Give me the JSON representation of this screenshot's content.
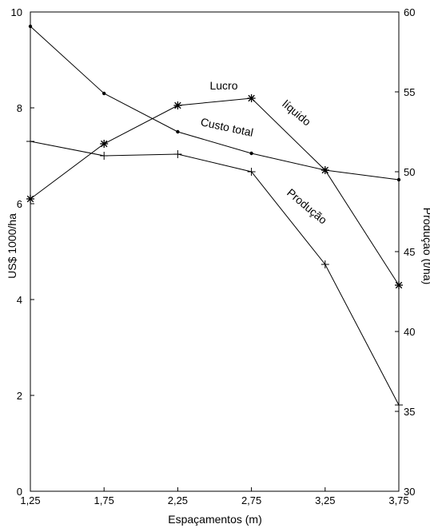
{
  "chart_data": {
    "type": "line",
    "title": "",
    "xlabel": "Espaçamentos (m)",
    "ylabel": "US$ 1000/ha",
    "y2label": "Produção (t/ha)",
    "x": [
      1.25,
      1.75,
      2.25,
      2.75,
      3.25,
      3.75
    ],
    "xticks": [
      "1,25",
      "1,75",
      "2,25",
      "2,75",
      "3,25",
      "3,75"
    ],
    "ylim": [
      0,
      10
    ],
    "yticks": [
      "0",
      "2",
      "4",
      "6",
      "8",
      "10"
    ],
    "y2lim": [
      30,
      60
    ],
    "y2ticks": [
      "30",
      "35",
      "40",
      "45",
      "50",
      "55",
      "60"
    ],
    "grid": false,
    "legend": "none",
    "series": [
      {
        "name": "Lucro líquido",
        "axis": "left",
        "marker": "asterisk",
        "values": [
          6.1,
          7.25,
          8.05,
          8.2,
          6.7,
          4.3
        ],
        "label_parts": [
          "Lucro",
          "líquido"
        ]
      },
      {
        "name": "Custo total",
        "axis": "left",
        "marker": "dot",
        "values": [
          9.7,
          8.3,
          7.5,
          7.05,
          6.7,
          6.5
        ],
        "label_parts": [
          "Custo total"
        ]
      },
      {
        "name": "Produção",
        "axis": "right",
        "marker": "plus",
        "values": [
          51.9,
          51.0,
          51.1,
          50.0,
          44.2,
          35.4
        ],
        "label_parts": [
          "Produção"
        ]
      }
    ]
  }
}
